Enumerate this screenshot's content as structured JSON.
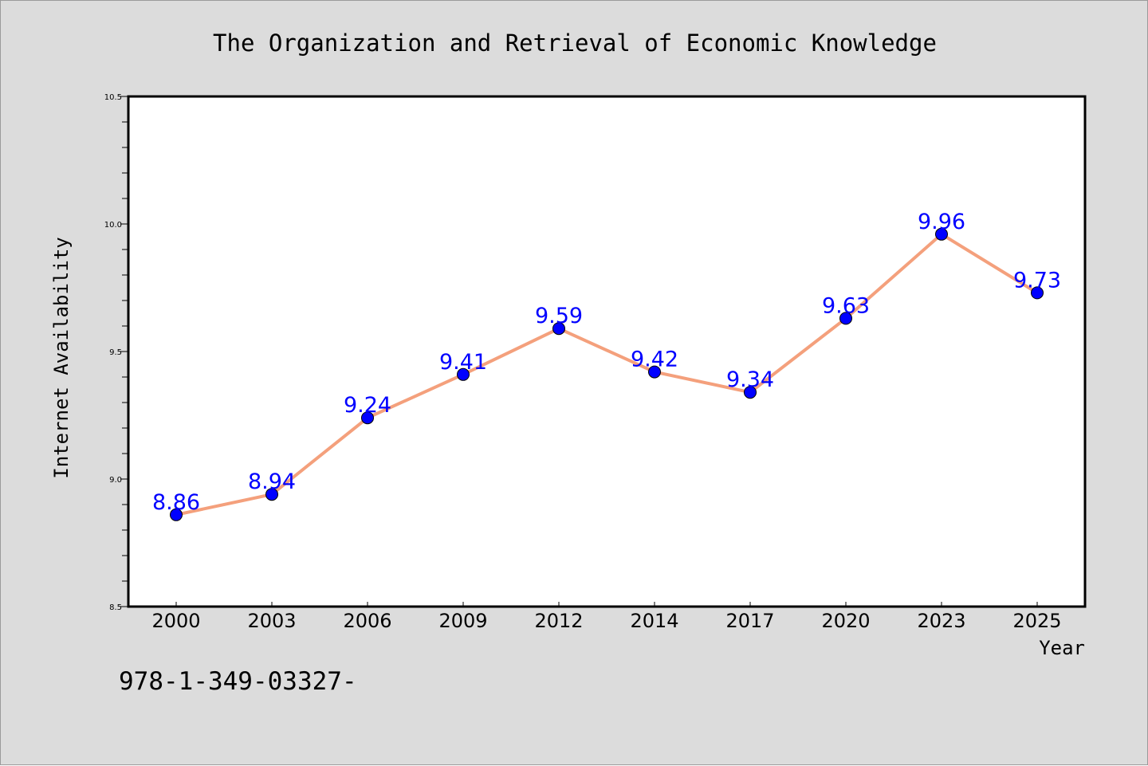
{
  "chart_data": {
    "type": "line",
    "title": "The Organization and Retrieval of Economic Knowledge",
    "xlabel": "Year",
    "ylabel": "Internet Availability",
    "categories": [
      "2000",
      "2003",
      "2006",
      "2009",
      "2012",
      "2014",
      "2017",
      "2020",
      "2023",
      "2025"
    ],
    "series": [
      {
        "values": [
          8.86,
          8.94,
          9.24,
          9.41,
          9.59,
          9.42,
          9.34,
          9.63,
          9.96,
          9.73
        ]
      }
    ],
    "data_labels": [
      "8.86",
      "8.94",
      "9.24",
      "9.41",
      "9.59",
      "9.42",
      "9.34",
      "9.63",
      "9.96",
      "9.73"
    ],
    "ylim": [
      8.5,
      10.5
    ],
    "yticks": [
      "8.5",
      "9.0",
      "9.5",
      "10.0",
      "10.5"
    ],
    "grid": false,
    "colors": {
      "line": "#f4a07c",
      "marker": "#0000ff",
      "label": "#0000ff",
      "background": "#dcdcdc",
      "plot_background": "#ffffff"
    }
  },
  "footnote": "978-1-349-03327-"
}
